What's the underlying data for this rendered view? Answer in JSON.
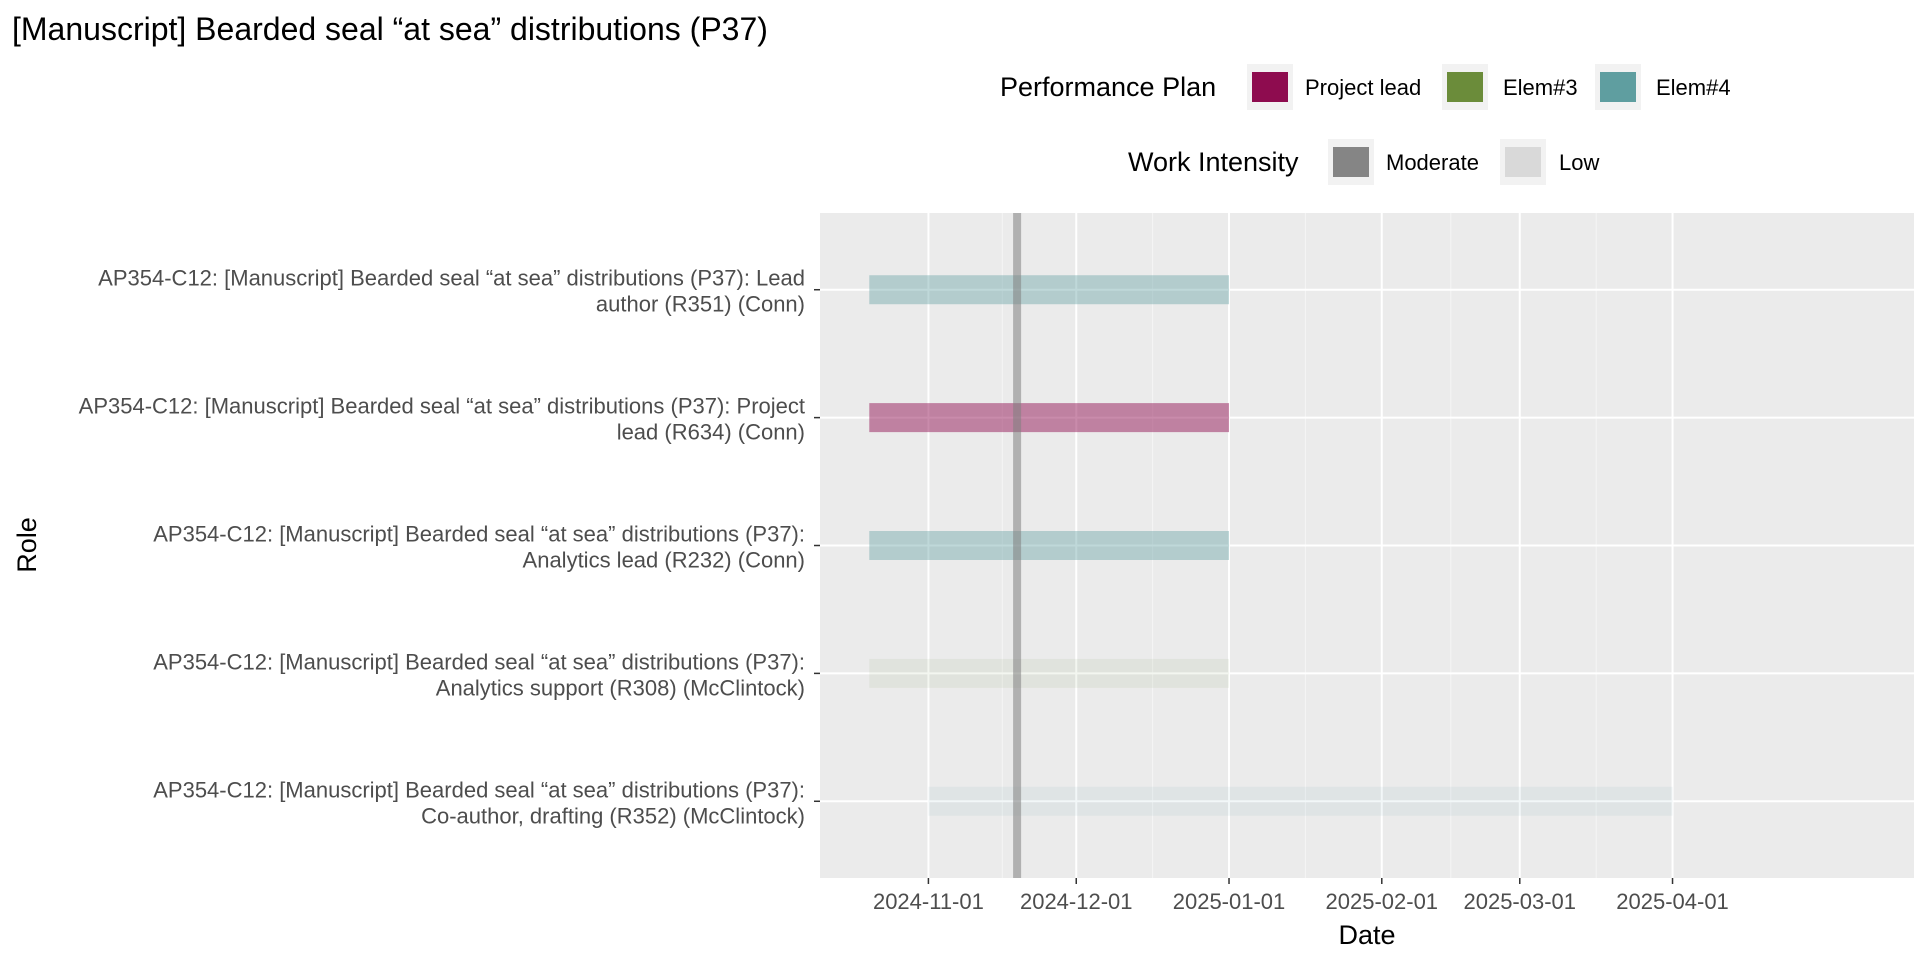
{
  "chart_data": {
    "type": "gantt",
    "title": "[Manuscript] Bearded seal “at sea” distributions (P37)",
    "xlabel": "Date",
    "ylabel": "Role",
    "xlim": [
      "2024-10-10",
      "2025-05-20"
    ],
    "x_ticks": [
      "2024-11-01",
      "2024-12-01",
      "2025-01-01",
      "2025-02-01",
      "2025-03-01",
      "2025-04-01"
    ],
    "today": "2024-11-19",
    "legend_placement": "top",
    "grid": true,
    "legends": [
      {
        "title": "Performance Plan",
        "entries": [
          {
            "label": "Project lead",
            "color": "#8e0c4f"
          },
          {
            "label": "Elem#3",
            "color": "#6b8c3a"
          },
          {
            "label": "Elem#4",
            "color": "#5f9ea0"
          }
        ]
      },
      {
        "title": "Work Intensity",
        "entries": [
          {
            "label": "Moderate",
            "color": "#858585"
          },
          {
            "label": "Low",
            "color": "#d9d9d9"
          }
        ]
      }
    ],
    "series": [
      {
        "label_lines": [
          "AP354-C12: [Manuscript] Bearded seal “at sea” distributions (P37): Lead",
          "author (R351) (Conn)"
        ],
        "start": "2024-10-20",
        "end": "2025-01-01",
        "plan": "Elem#4",
        "intensity": "Moderate",
        "color": "#5f9ea0",
        "opacity": 0.4
      },
      {
        "label_lines": [
          "AP354-C12: [Manuscript] Bearded seal “at sea” distributions (P37): Project",
          "lead (R634) (Conn)"
        ],
        "start": "2024-10-20",
        "end": "2025-01-01",
        "plan": "Project lead",
        "intensity": "Moderate",
        "color": "#8e0c4f",
        "opacity": 0.48
      },
      {
        "label_lines": [
          "AP354-C12: [Manuscript] Bearded seal “at sea” distributions (P37):",
          "Analytics lead (R232) (Conn)"
        ],
        "start": "2024-10-20",
        "end": "2025-01-01",
        "plan": "Elem#4",
        "intensity": "Moderate",
        "color": "#5f9ea0",
        "opacity": 0.4
      },
      {
        "label_lines": [
          "AP354-C12: [Manuscript] Bearded seal “at sea” distributions (P37):",
          "Analytics support (R308) (McClintock)"
        ],
        "start": "2024-10-20",
        "end": "2025-01-01",
        "plan": "Elem#3",
        "intensity": "Low",
        "color": "#6b8c3a",
        "opacity": 0.08
      },
      {
        "label_lines": [
          "AP354-C12: [Manuscript] Bearded seal “at sea” distributions (P37):",
          "Co-author, drafting (R352) (McClintock)"
        ],
        "start": "2024-11-01",
        "end": "2025-04-01",
        "plan": "Elem#4",
        "intensity": "Low",
        "color": "#5f9ea0",
        "opacity": 0.08
      }
    ]
  }
}
